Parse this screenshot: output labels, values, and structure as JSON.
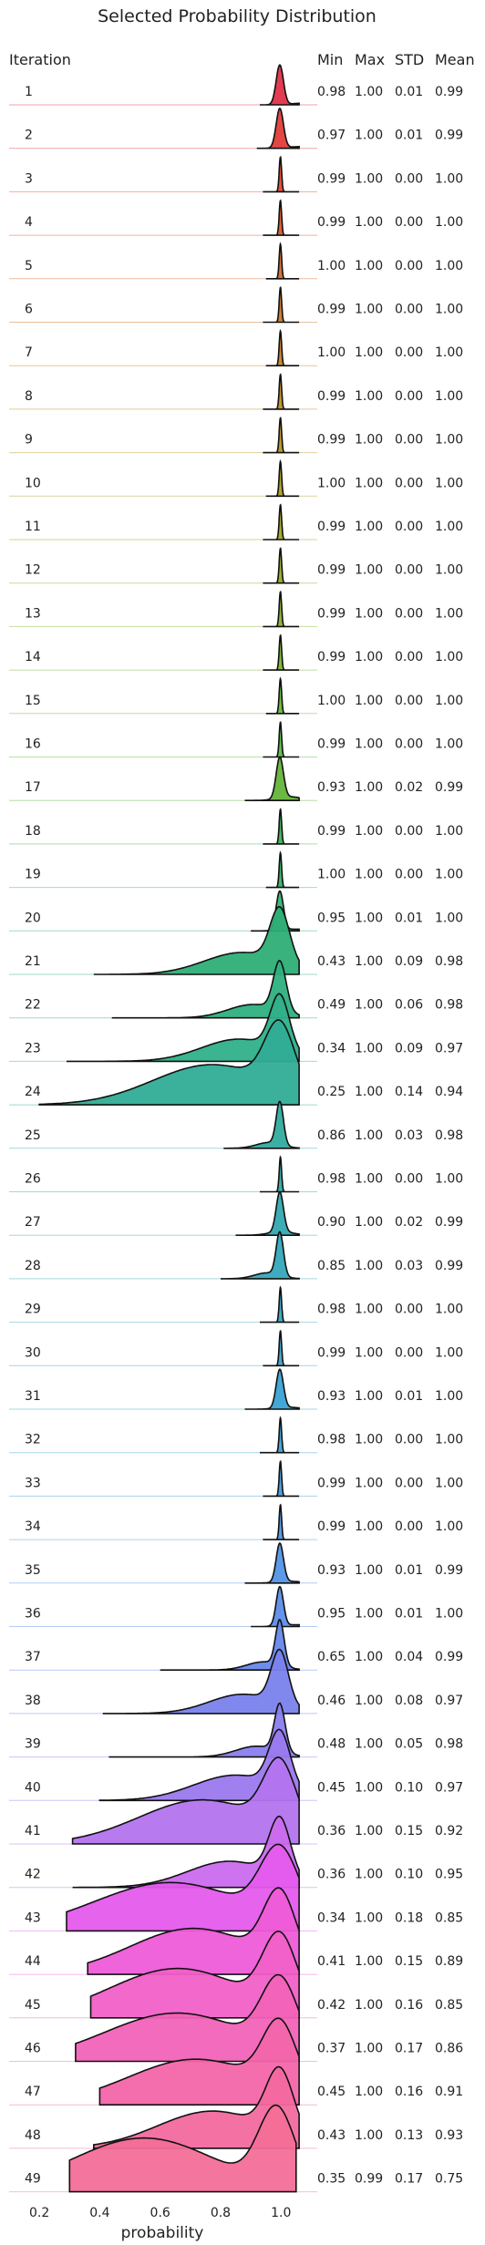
{
  "chart_data": {
    "type": "ridgeline",
    "title": "Selected Probability Distribution",
    "xlabel": "probability",
    "row_header": "Iteration",
    "stat_headers": [
      "Min",
      "Max",
      "STD",
      "Mean"
    ],
    "xlim": [
      0.1,
      1.12
    ],
    "xticks": [
      0.2,
      0.4,
      0.6,
      0.8,
      1.0
    ],
    "xtick_labels": [
      "0.2",
      "0.4",
      "0.6",
      "0.8",
      "1.0"
    ],
    "series": [
      {
        "iteration": "1",
        "min": "0.98",
        "max": "1.00",
        "std": "0.01",
        "mean": "0.99",
        "color": "#e0314a"
      },
      {
        "iteration": "2",
        "min": "0.97",
        "max": "1.00",
        "std": "0.01",
        "mean": "0.99",
        "color": "#e23d3a"
      },
      {
        "iteration": "3",
        "min": "0.99",
        "max": "1.00",
        "std": "0.00",
        "mean": "1.00",
        "color": "#e04a2e"
      },
      {
        "iteration": "4",
        "min": "0.99",
        "max": "1.00",
        "std": "0.00",
        "mean": "1.00",
        "color": "#dc5a2a"
      },
      {
        "iteration": "5",
        "min": "1.00",
        "max": "1.00",
        "std": "0.00",
        "mean": "1.00",
        "color": "#d76a28"
      },
      {
        "iteration": "6",
        "min": "0.99",
        "max": "1.00",
        "std": "0.00",
        "mean": "1.00",
        "color": "#d07726"
      },
      {
        "iteration": "7",
        "min": "1.00",
        "max": "1.00",
        "std": "0.00",
        "mean": "1.00",
        "color": "#c98324"
      },
      {
        "iteration": "8",
        "min": "0.99",
        "max": "1.00",
        "std": "0.00",
        "mean": "1.00",
        "color": "#c18e22"
      },
      {
        "iteration": "9",
        "min": "0.99",
        "max": "1.00",
        "std": "0.00",
        "mean": "1.00",
        "color": "#b89721"
      },
      {
        "iteration": "10",
        "min": "1.00",
        "max": "1.00",
        "std": "0.00",
        "mean": "1.00",
        "color": "#ad9f21"
      },
      {
        "iteration": "11",
        "min": "0.99",
        "max": "1.00",
        "std": "0.00",
        "mean": "1.00",
        "color": "#a2a623"
      },
      {
        "iteration": "12",
        "min": "0.99",
        "max": "1.00",
        "std": "0.00",
        "mean": "1.00",
        "color": "#95ad25"
      },
      {
        "iteration": "13",
        "min": "0.99",
        "max": "1.00",
        "std": "0.00",
        "mean": "1.00",
        "color": "#87b329"
      },
      {
        "iteration": "14",
        "min": "0.99",
        "max": "1.00",
        "std": "0.00",
        "mean": "1.00",
        "color": "#78b82e"
      },
      {
        "iteration": "15",
        "min": "1.00",
        "max": "1.00",
        "std": "0.00",
        "mean": "1.00",
        "color": "#68bc35"
      },
      {
        "iteration": "16",
        "min": "0.99",
        "max": "1.00",
        "std": "0.00",
        "mean": "1.00",
        "color": "#58bf3e"
      },
      {
        "iteration": "17",
        "min": "0.93",
        "max": "1.00",
        "std": "0.02",
        "mean": "0.99",
        "color": "#64b43a"
      },
      {
        "iteration": "18",
        "min": "0.99",
        "max": "1.00",
        "std": "0.00",
        "mean": "1.00",
        "color": "#3bb358"
      },
      {
        "iteration": "19",
        "min": "1.00",
        "max": "1.00",
        "std": "0.00",
        "mean": "1.00",
        "color": "#34b466"
      },
      {
        "iteration": "20",
        "min": "0.95",
        "max": "1.00",
        "std": "0.01",
        "mean": "1.00",
        "color": "#33b472"
      },
      {
        "iteration": "21",
        "min": "0.43",
        "max": "1.00",
        "std": "0.09",
        "mean": "0.98",
        "color": "#2eae76"
      },
      {
        "iteration": "22",
        "min": "0.49",
        "max": "1.00",
        "std": "0.06",
        "mean": "0.98",
        "color": "#2eb07f"
      },
      {
        "iteration": "23",
        "min": "0.34",
        "max": "1.00",
        "std": "0.09",
        "mean": "0.97",
        "color": "#30b08a"
      },
      {
        "iteration": "24",
        "min": "0.25",
        "max": "1.00",
        "std": "0.14",
        "mean": "0.94",
        "color": "#30ad96"
      },
      {
        "iteration": "25",
        "min": "0.86",
        "max": "1.00",
        "std": "0.03",
        "mean": "0.98",
        "color": "#31ab9f"
      },
      {
        "iteration": "26",
        "min": "0.98",
        "max": "1.00",
        "std": "0.00",
        "mean": "1.00",
        "color": "#32aaa8"
      },
      {
        "iteration": "27",
        "min": "0.90",
        "max": "1.00",
        "std": "0.02",
        "mean": "0.99",
        "color": "#33a9b1"
      },
      {
        "iteration": "28",
        "min": "0.85",
        "max": "1.00",
        "std": "0.03",
        "mean": "0.99",
        "color": "#34a8ba"
      },
      {
        "iteration": "29",
        "min": "0.98",
        "max": "1.00",
        "std": "0.00",
        "mean": "1.00",
        "color": "#36a7c3"
      },
      {
        "iteration": "30",
        "min": "0.99",
        "max": "1.00",
        "std": "0.00",
        "mean": "1.00",
        "color": "#38a5cc"
      },
      {
        "iteration": "31",
        "min": "0.93",
        "max": "1.00",
        "std": "0.01",
        "mean": "1.00",
        "color": "#3aa3d4"
      },
      {
        "iteration": "32",
        "min": "0.98",
        "max": "1.00",
        "std": "0.00",
        "mean": "1.00",
        "color": "#3ea0da"
      },
      {
        "iteration": "33",
        "min": "0.99",
        "max": "1.00",
        "std": "0.00",
        "mean": "1.00",
        "color": "#449cdf"
      },
      {
        "iteration": "34",
        "min": "0.99",
        "max": "1.00",
        "std": "0.00",
        "mean": "1.00",
        "color": "#4b98e3"
      },
      {
        "iteration": "35",
        "min": "0.93",
        "max": "1.00",
        "std": "0.01",
        "mean": "0.99",
        "color": "#5393e6"
      },
      {
        "iteration": "36",
        "min": "0.95",
        "max": "1.00",
        "std": "0.01",
        "mean": "1.00",
        "color": "#5d8de9"
      },
      {
        "iteration": "37",
        "min": "0.65",
        "max": "1.00",
        "std": "0.04",
        "mean": "0.99",
        "color": "#6787eb"
      },
      {
        "iteration": "38",
        "min": "0.46",
        "max": "1.00",
        "std": "0.08",
        "mean": "0.97",
        "color": "#7a82ec"
      },
      {
        "iteration": "39",
        "min": "0.48",
        "max": "1.00",
        "std": "0.05",
        "mean": "0.98",
        "color": "#8a7eee"
      },
      {
        "iteration": "40",
        "min": "0.45",
        "max": "1.00",
        "std": "0.10",
        "mean": "0.97",
        "color": "#9b79ee"
      },
      {
        "iteration": "41",
        "min": "0.36",
        "max": "1.00",
        "std": "0.15",
        "mean": "0.92",
        "color": "#b474ee"
      },
      {
        "iteration": "42",
        "min": "0.36",
        "max": "1.00",
        "std": "0.10",
        "mean": "0.95",
        "color": "#cb6cee"
      },
      {
        "iteration": "43",
        "min": "0.34",
        "max": "1.00",
        "std": "0.18",
        "mean": "0.85",
        "color": "#e45bec"
      },
      {
        "iteration": "44",
        "min": "0.41",
        "max": "1.00",
        "std": "0.15",
        "mean": "0.89",
        "color": "#ee5cd8"
      },
      {
        "iteration": "45",
        "min": "0.42",
        "max": "1.00",
        "std": "0.16",
        "mean": "0.85",
        "color": "#f160c8"
      },
      {
        "iteration": "46",
        "min": "0.37",
        "max": "1.00",
        "std": "0.17",
        "mean": "0.86",
        "color": "#f263b8"
      },
      {
        "iteration": "47",
        "min": "0.45",
        "max": "1.00",
        "std": "0.16",
        "mean": "0.91",
        "color": "#f366aa"
      },
      {
        "iteration": "48",
        "min": "0.43",
        "max": "1.00",
        "std": "0.13",
        "mean": "0.93",
        "color": "#f3699f"
      },
      {
        "iteration": "49",
        "min": "0.35",
        "max": "0.99",
        "std": "0.17",
        "mean": "0.75",
        "color": "#f36e98"
      }
    ]
  }
}
